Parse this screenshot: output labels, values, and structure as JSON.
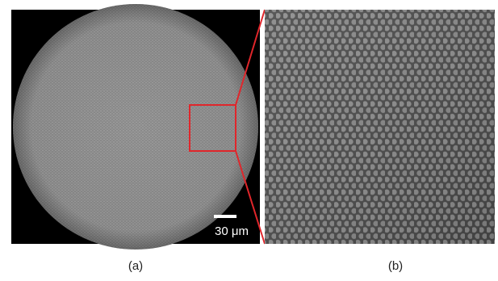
{
  "panels": [
    {
      "label": "(a)",
      "scale_bar": "30 μm"
    },
    {
      "label": "(b)"
    }
  ]
}
